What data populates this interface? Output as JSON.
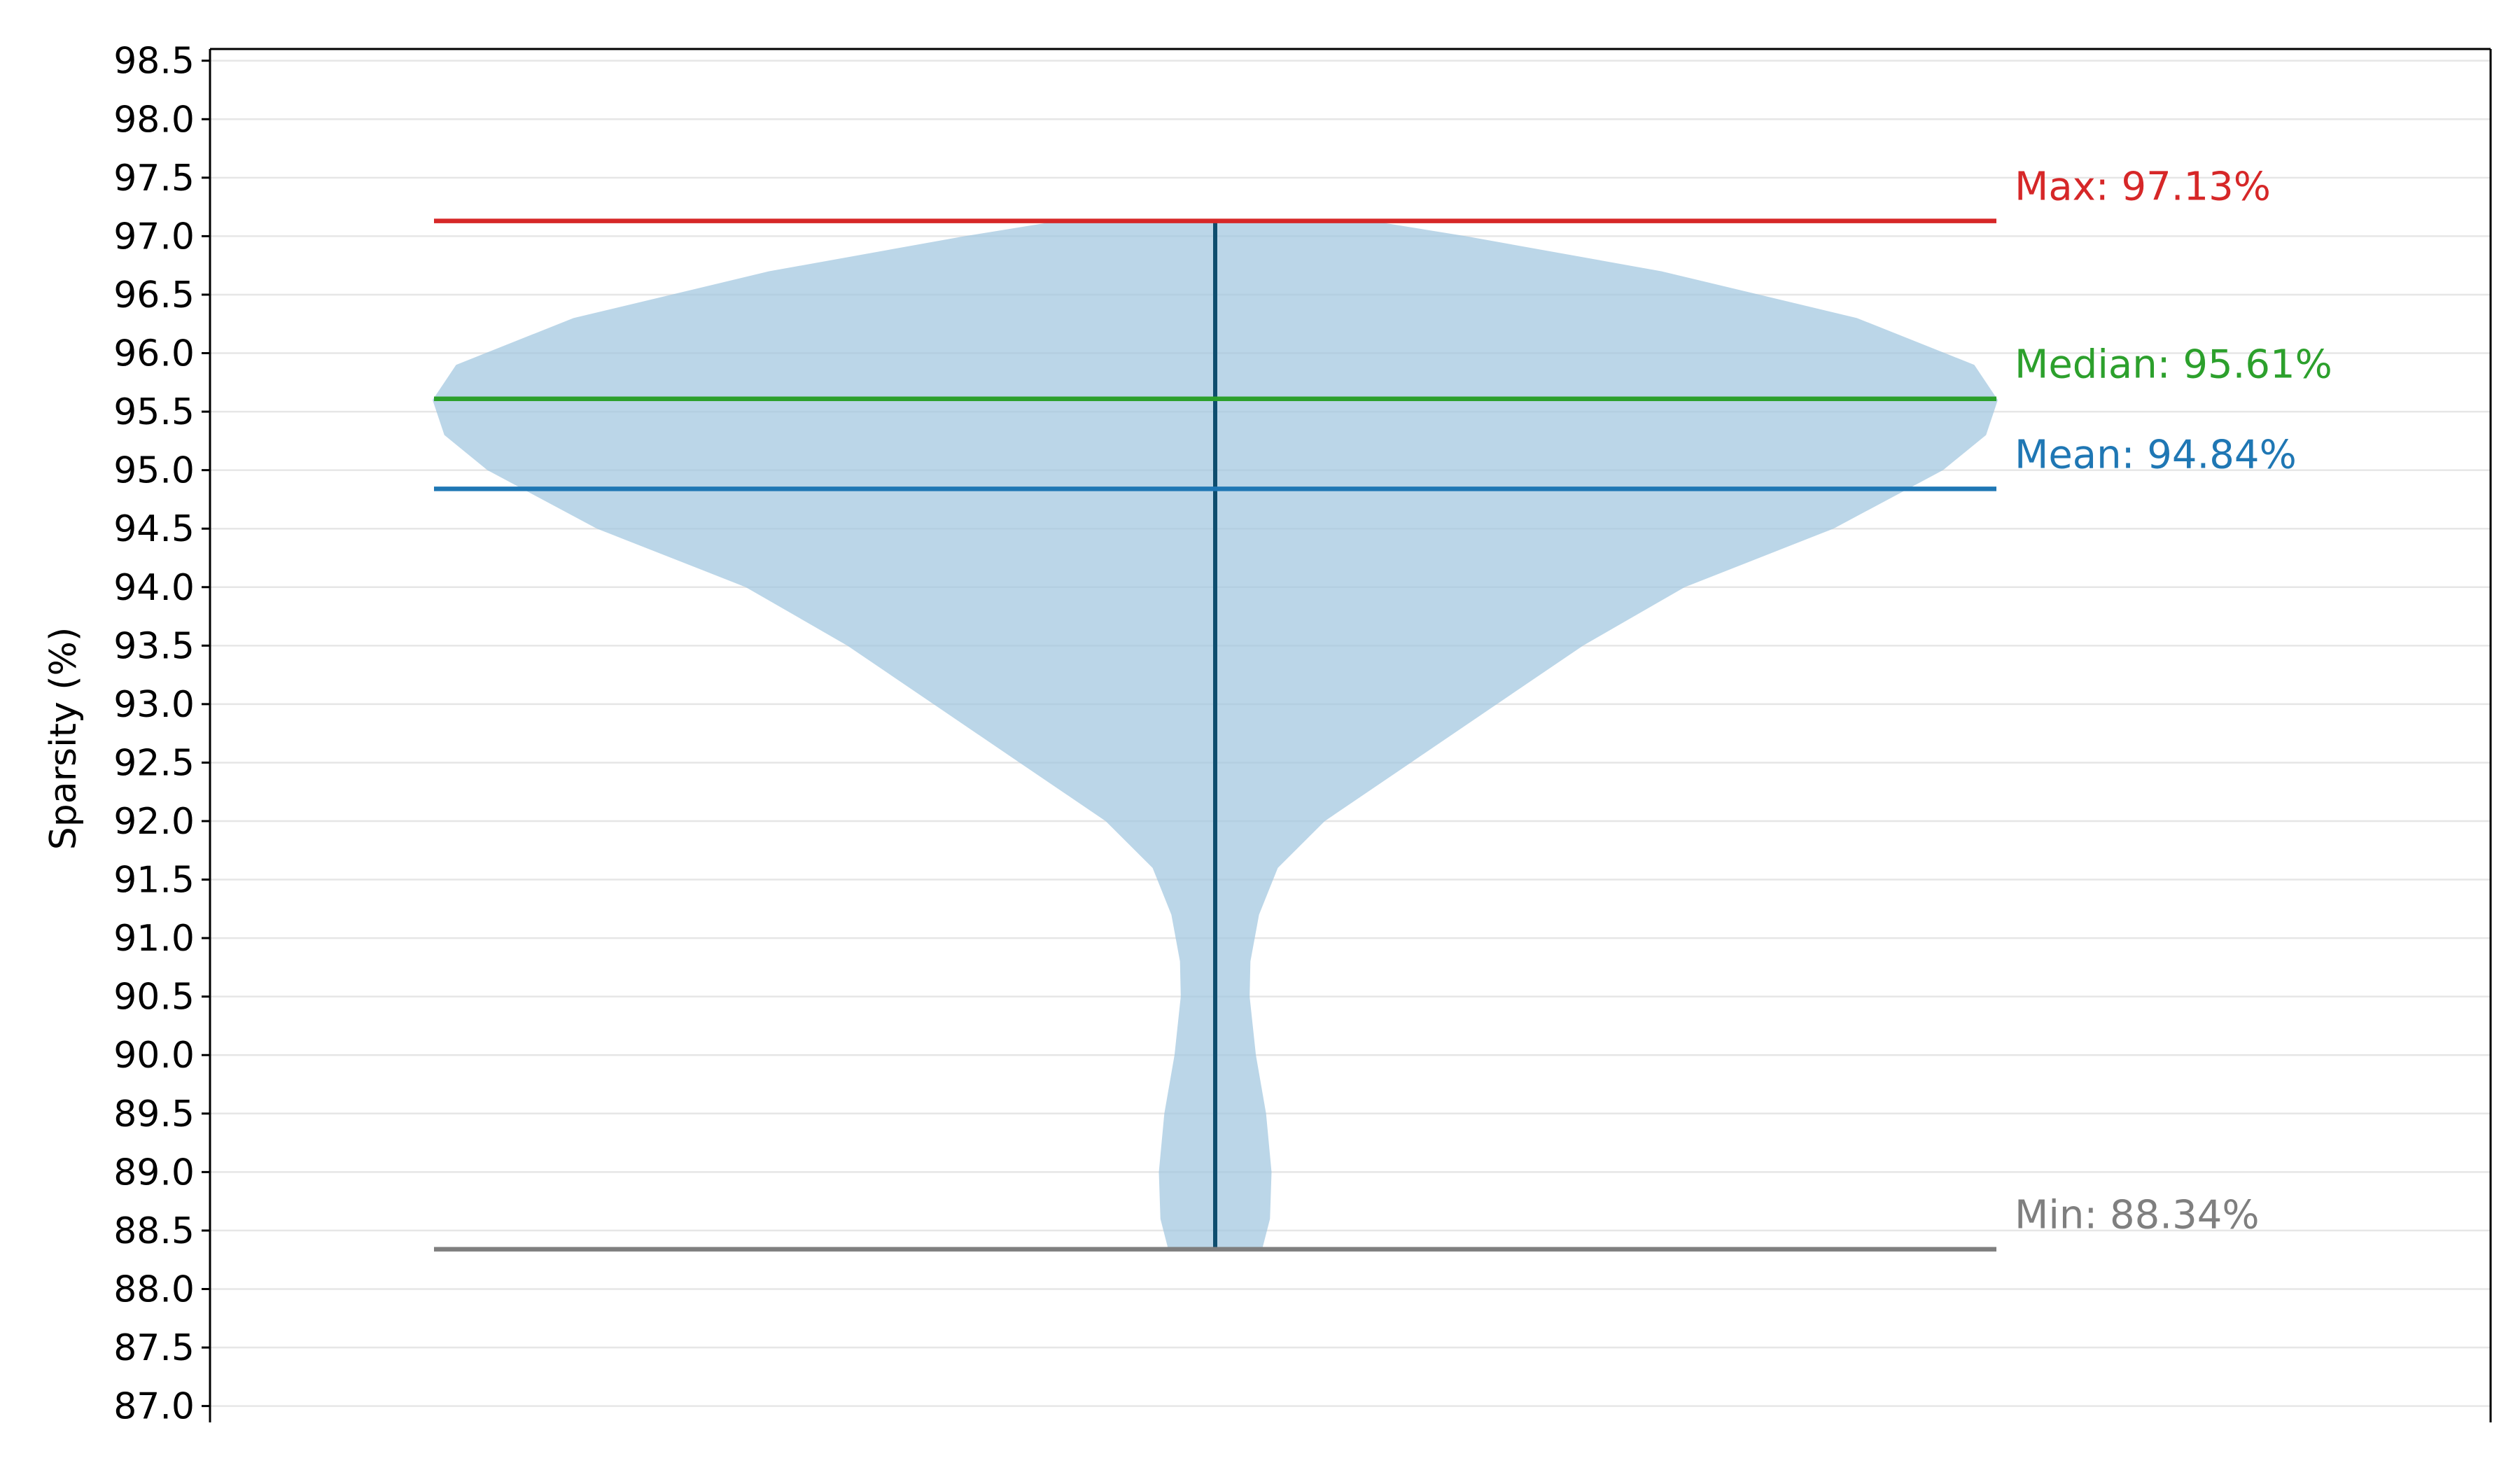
{
  "chart_data": {
    "type": "violin",
    "title": "",
    "xlabel": "",
    "ylabel": "Sparsity (%)",
    "ylim": [
      86.86,
      98.6
    ],
    "yticks": [
      87.0,
      87.5,
      88.0,
      88.5,
      89.0,
      89.5,
      90.0,
      90.5,
      91.0,
      91.5,
      92.0,
      92.5,
      93.0,
      93.5,
      94.0,
      94.5,
      95.0,
      95.5,
      96.0,
      96.5,
      97.0,
      97.5,
      98.0,
      98.5
    ],
    "ytick_labels": [
      "87.0",
      "87.5",
      "88.0",
      "88.5",
      "89.0",
      "89.5",
      "90.0",
      "90.5",
      "91.0",
      "91.5",
      "92.0",
      "92.5",
      "93.0",
      "93.5",
      "94.0",
      "94.5",
      "95.0",
      "95.5",
      "96.0",
      "96.5",
      "97.0",
      "97.5",
      "98.0",
      "98.5"
    ],
    "grid": true,
    "violin": {
      "color": "#9ec4de",
      "density_profile": [
        {
          "y": 88.34,
          "w": 0.06
        },
        {
          "y": 88.6,
          "w": 0.07
        },
        {
          "y": 89.0,
          "w": 0.072
        },
        {
          "y": 89.5,
          "w": 0.065
        },
        {
          "y": 90.0,
          "w": 0.052
        },
        {
          "y": 90.5,
          "w": 0.044
        },
        {
          "y": 90.8,
          "w": 0.045
        },
        {
          "y": 91.2,
          "w": 0.056
        },
        {
          "y": 91.6,
          "w": 0.08
        },
        {
          "y": 92.0,
          "w": 0.14
        },
        {
          "y": 92.5,
          "w": 0.25
        },
        {
          "y": 93.0,
          "w": 0.36
        },
        {
          "y": 93.5,
          "w": 0.47
        },
        {
          "y": 94.0,
          "w": 0.6
        },
        {
          "y": 94.5,
          "w": 0.79
        },
        {
          "y": 95.0,
          "w": 0.93
        },
        {
          "y": 95.3,
          "w": 0.985
        },
        {
          "y": 95.6,
          "w": 1.0
        },
        {
          "y": 95.9,
          "w": 0.97
        },
        {
          "y": 96.3,
          "w": 0.82
        },
        {
          "y": 96.7,
          "w": 0.57
        },
        {
          "y": 97.0,
          "w": 0.32
        },
        {
          "y": 97.13,
          "w": 0.2
        }
      ]
    },
    "stats": {
      "max": 97.13,
      "median": 95.61,
      "mean": 94.84,
      "min": 88.34
    },
    "colors": {
      "max": "#d62728",
      "median": "#2ca02c",
      "mean": "#1f77b4",
      "min": "#7f7f7f",
      "whisker": "#0e4d6e"
    },
    "annotations": {
      "max": "Max: 97.13%",
      "median": "Median: 95.61%",
      "mean": "Mean: 94.84%",
      "min": "Min: 88.34%"
    }
  }
}
